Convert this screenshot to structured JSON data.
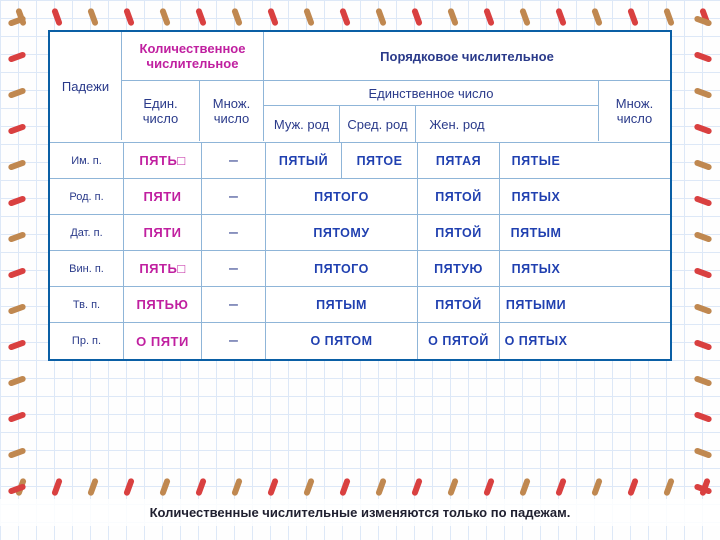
{
  "headers": {
    "cases": "Падежи",
    "cardinal": "Количественное числительное",
    "ordinal": "Порядковое числительное",
    "singular": "Един. число",
    "plural": "Множ. число",
    "singular_full": "Единственное число",
    "masc": "Муж. род",
    "neut": "Сред. род",
    "fem": "Жен. род"
  },
  "cases": [
    "Им. п.",
    "Род. п.",
    "Дат. п.",
    "Вин. п.",
    "Тв. п.",
    "Пр. п."
  ],
  "cardinal_sg": [
    "ПЯТЬ□",
    "ПЯТИ",
    "ПЯТИ",
    "ПЯТЬ□",
    "ПЯТЬЮ",
    "О ПЯТИ"
  ],
  "cardinal_pl": [
    "–",
    "–",
    "–",
    "–",
    "–",
    "–"
  ],
  "ord_m": [
    "ПЯТЫЙ",
    "",
    "",
    "",
    "",
    ""
  ],
  "ord_n": [
    "ПЯТОЕ",
    "",
    "",
    "",
    "",
    ""
  ],
  "ord_ms": [
    "",
    "ПЯТОГО",
    "ПЯТОМУ",
    "ПЯТОГО",
    "ПЯТЫМ",
    "О ПЯТОМ"
  ],
  "ord_f": [
    "ПЯТАЯ",
    "ПЯТОЙ",
    "ПЯТОЙ",
    "ПЯТУЮ",
    "ПЯТОЙ",
    "О ПЯТОЙ"
  ],
  "ord_pl": [
    "ПЯТЫЕ",
    "ПЯТЫХ",
    "ПЯТЫМ",
    "ПЯТЫХ",
    "ПЯТЫМИ",
    "О ПЯТЫХ"
  ],
  "footer": "Количественные числительные изменяются  только по падежам.",
  "colors": {
    "border": "#0a5fa5",
    "grid": "#d0e0f5",
    "text": "#2a3a8a",
    "magenta": "#c020a0",
    "bluecap": "#2040b0",
    "stitch1": "#c08850",
    "stitch2": "#d94040"
  }
}
